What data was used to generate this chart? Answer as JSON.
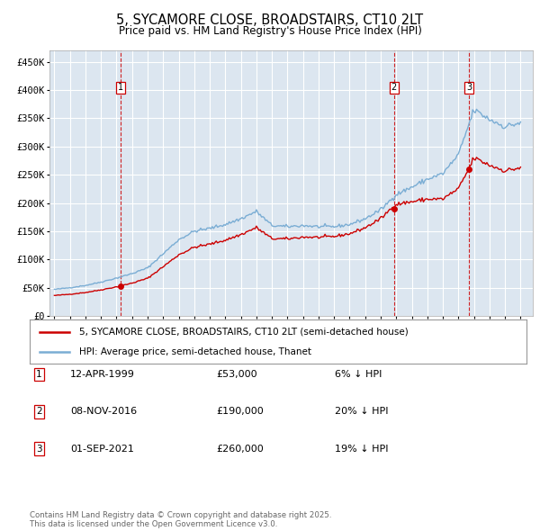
{
  "title": "5, SYCAMORE CLOSE, BROADSTAIRS, CT10 2LT",
  "subtitle": "Price paid vs. HM Land Registry's House Price Index (HPI)",
  "title_fontsize": 10.5,
  "subtitle_fontsize": 8.5,
  "plot_bg_color": "#dce6f0",
  "red_line_color": "#cc0000",
  "blue_line_color": "#7aadd4",
  "grid_color": "#ffffff",
  "dashed_line_color": "#cc0000",
  "legend_label_red": "5, SYCAMORE CLOSE, BROADSTAIRS, CT10 2LT (semi-detached house)",
  "legend_label_blue": "HPI: Average price, semi-detached house, Thanet",
  "transactions": [
    {
      "num": 1,
      "date_str": "12-APR-1999",
      "date_x": 1999.28,
      "price": 53000,
      "pct": "6% ↓ HPI"
    },
    {
      "num": 2,
      "date_str": "08-NOV-2016",
      "date_x": 2016.85,
      "price": 190000,
      "pct": "20% ↓ HPI"
    },
    {
      "num": 3,
      "date_str": "01-SEP-2021",
      "date_x": 2021.67,
      "price": 260000,
      "pct": "19% ↓ HPI"
    }
  ],
  "ylim": [
    0,
    470000
  ],
  "xlim_start": 1994.7,
  "xlim_end": 2025.8,
  "yticks": [
    0,
    50000,
    100000,
    150000,
    200000,
    250000,
    300000,
    350000,
    400000,
    450000
  ],
  "ytick_labels": [
    "£0",
    "£50K",
    "£100K",
    "£150K",
    "£200K",
    "£250K",
    "£300K",
    "£350K",
    "£400K",
    "£450K"
  ],
  "footer_text": "Contains HM Land Registry data © Crown copyright and database right 2025.\nThis data is licensed under the Open Government Licence v3.0.",
  "hpi_year_vals": {
    "1995": 47000,
    "1996": 50000,
    "1997": 54000,
    "1998": 60000,
    "1999": 67000,
    "2000": 75000,
    "2001": 85000,
    "2002": 110000,
    "2003": 135000,
    "2004": 150000,
    "2005": 155000,
    "2006": 162000,
    "2007": 172000,
    "2008": 185000,
    "2009": 160000,
    "2010": 158000,
    "2011": 160000,
    "2012": 158000,
    "2013": 158000,
    "2014": 162000,
    "2015": 172000,
    "2016": 188000,
    "2017": 215000,
    "2018": 228000,
    "2019": 242000,
    "2020": 252000,
    "2021": 285000,
    "2022": 365000,
    "2023": 348000,
    "2024": 335000,
    "2025": 342000
  }
}
